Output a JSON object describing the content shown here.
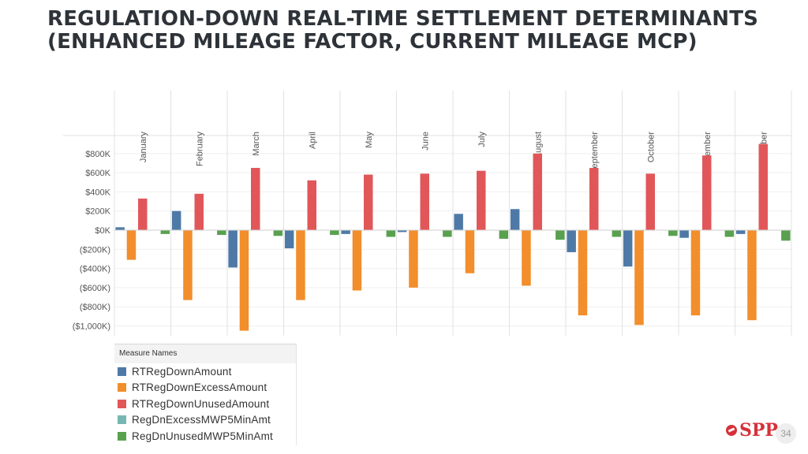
{
  "slide": {
    "title": "REGULATION-DOWN REAL-TIME SETTLEMENT DETERMINANTS (ENHANCED MILEAGE FACTOR, CURRENT MILEAGE MCP)",
    "logo_text": "SPP",
    "page_number": "34"
  },
  "legend": {
    "header": "Measure Names",
    "items": [
      {
        "label": "RTRegDownAmount",
        "color": "#4e79a7"
      },
      {
        "label": "RTRegDownExcessAmount",
        "color": "#f28e2b"
      },
      {
        "label": "RTRegDownUnusedAmount",
        "color": "#e15759"
      },
      {
        "label": "RegDnExcessMWP5MinAmt",
        "color": "#76b7b2"
      },
      {
        "label": "RegDnUnusedMWP5MinAmt",
        "color": "#59a14f"
      }
    ]
  },
  "chart_data": {
    "type": "bar",
    "categories": [
      "January",
      "February",
      "March",
      "April",
      "May",
      "June",
      "July",
      "August",
      "September",
      "October",
      "November",
      "December"
    ],
    "series": [
      {
        "name": "RTRegDownAmount",
        "color": "#4e79a7",
        "values": [
          30000,
          200000,
          -390000,
          -190000,
          -40000,
          -20000,
          170000,
          220000,
          -230000,
          -380000,
          -80000,
          -40000
        ]
      },
      {
        "name": "RTRegDownExcessAmount",
        "color": "#f28e2b",
        "values": [
          -310000,
          -730000,
          -1050000,
          -730000,
          -630000,
          -600000,
          -450000,
          -580000,
          -890000,
          -990000,
          -890000,
          -940000
        ]
      },
      {
        "name": "RTRegDownUnusedAmount",
        "color": "#e15759",
        "values": [
          330000,
          380000,
          650000,
          520000,
          580000,
          590000,
          620000,
          800000,
          650000,
          590000,
          780000,
          900000
        ]
      },
      {
        "name": "RegDnExcessMWP5MinAmt",
        "color": "#76b7b2",
        "values": [
          0,
          0,
          0,
          0,
          0,
          0,
          0,
          0,
          0,
          0,
          0,
          0
        ]
      },
      {
        "name": "RegDnUnusedMWP5MinAmt",
        "color": "#59a14f",
        "values": [
          -40000,
          -50000,
          -60000,
          -50000,
          -70000,
          -70000,
          -90000,
          -100000,
          -70000,
          -60000,
          -70000,
          -110000
        ]
      }
    ],
    "ytick_values": [
      800000,
      600000,
      400000,
      200000,
      0,
      -200000,
      -400000,
      -600000,
      -800000,
      -1000000
    ],
    "ytick_labels": [
      "$800K",
      "$600K",
      "$400K",
      "$200K",
      "$0K",
      "($200K)",
      "($400K)",
      "($600K)",
      "($800K)",
      "($1,000K)"
    ],
    "ylim": [
      -1100000,
      1000000
    ],
    "xlabel": "",
    "ylabel": "",
    "legend": "bottom-left",
    "grid": true
  }
}
